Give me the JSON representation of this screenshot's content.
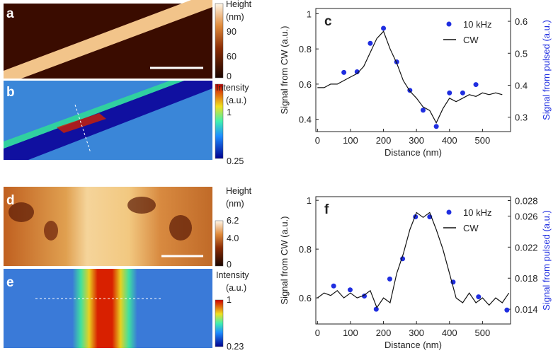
{
  "panels": [
    {
      "label": "a",
      "colorbar_title": [
        "Height",
        "(nm)"
      ],
      "colorbar_ticks": [
        90,
        60,
        0
      ]
    },
    {
      "label": "b",
      "colorbar_title": [
        "Intensity",
        "(a.u.)"
      ],
      "colorbar_ticks": [
        1,
        0.25
      ]
    },
    {
      "label": "d",
      "colorbar_title": [
        "Height",
        "(nm)"
      ],
      "colorbar_ticks": [
        6.2,
        {
          "value": 4,
          "label": "4.0"
        },
        0
      ]
    },
    {
      "label": "e",
      "colorbar_title": [
        "Intensity",
        "(a.u.)"
      ],
      "colorbar_ticks": [
        1,
        0.23
      ]
    }
  ],
  "chart_data": [
    {
      "type": "line",
      "panel_label": "c",
      "xlabel": "Distance (nm)",
      "ylabel": "Signal from CW (a.u.)",
      "y2label": "Signal from pulsed (a.u.)",
      "xlim": [
        -5,
        585
      ],
      "xticks": [
        0,
        100,
        200,
        300,
        400,
        500
      ],
      "ylim": [
        0.33,
        1.03
      ],
      "yticks": [
        0.4,
        0.6,
        0.8,
        1.0
      ],
      "y2lim": [
        0.255,
        0.64
      ],
      "y2ticks": [
        0.3,
        0.4,
        0.5,
        0.6
      ],
      "legend": "upper right",
      "series": [
        {
          "name": "10 kHz",
          "color": "#1f2ee0",
          "mode": "markers",
          "axis": "y2",
          "x": [
            80,
            120,
            160,
            200,
            240,
            280,
            320,
            360,
            400,
            440,
            480
          ],
          "values": [
            0.44,
            0.442,
            0.531,
            0.578,
            0.473,
            0.384,
            0.322,
            0.271,
            0.376,
            0.376,
            0.402
          ]
        },
        {
          "name": "CW",
          "color": "#111111",
          "mode": "lines",
          "x": [
            0,
            20,
            40,
            60,
            80,
            100,
            120,
            140,
            160,
            180,
            200,
            220,
            240,
            260,
            280,
            300,
            320,
            340,
            360,
            380,
            400,
            420,
            440,
            460,
            480,
            500,
            520,
            540,
            560
          ],
          "values": [
            0.58,
            0.58,
            0.6,
            0.6,
            0.62,
            0.64,
            0.66,
            0.7,
            0.78,
            0.86,
            0.9,
            0.8,
            0.72,
            0.62,
            0.56,
            0.52,
            0.47,
            0.45,
            0.38,
            0.46,
            0.52,
            0.5,
            0.52,
            0.54,
            0.53,
            0.55,
            0.54,
            0.55,
            0.54
          ]
        }
      ]
    },
    {
      "type": "line",
      "panel_label": "f",
      "xlabel": "Distance (nm)",
      "ylabel": "Signal from CW (a.u.)",
      "y2label": "Signal from pulsed (a.u.)",
      "xlim": [
        -5,
        585
      ],
      "xticks": [
        0,
        100,
        200,
        300,
        400,
        500
      ],
      "ylim": [
        0.493,
        1.015
      ],
      "yticks": [
        0.6,
        0.8,
        1.0
      ],
      "y2lim": [
        0.0121,
        0.0285
      ],
      "y2ticks": [
        0.014,
        0.018,
        0.022,
        0.026,
        0.028
      ],
      "legend": "upper right",
      "series": [
        {
          "name": "10 kHz",
          "color": "#1f2ee0",
          "mode": "markers",
          "axis": "y2",
          "x": [
            49,
            99,
            142,
            178,
            219,
            258,
            297,
            340,
            411,
            488,
            574
          ],
          "values": [
            0.017,
            0.0165,
            0.0157,
            0.014,
            0.0179,
            0.0205,
            0.0259,
            0.0259,
            0.0175,
            0.0156,
            0.0139
          ]
        },
        {
          "name": "CW",
          "color": "#111111",
          "mode": "lines",
          "x": [
            0,
            20,
            40,
            60,
            80,
            100,
            120,
            140,
            160,
            180,
            200,
            220,
            240,
            260,
            280,
            300,
            320,
            340,
            360,
            380,
            400,
            420,
            440,
            460,
            480,
            500,
            520,
            540,
            560,
            580
          ],
          "values": [
            0.6,
            0.62,
            0.61,
            0.63,
            0.6,
            0.62,
            0.6,
            0.61,
            0.63,
            0.56,
            0.6,
            0.58,
            0.7,
            0.78,
            0.88,
            0.95,
            0.93,
            0.95,
            0.88,
            0.8,
            0.7,
            0.6,
            0.58,
            0.62,
            0.58,
            0.6,
            0.57,
            0.6,
            0.58,
            0.62
          ]
        }
      ]
    }
  ]
}
